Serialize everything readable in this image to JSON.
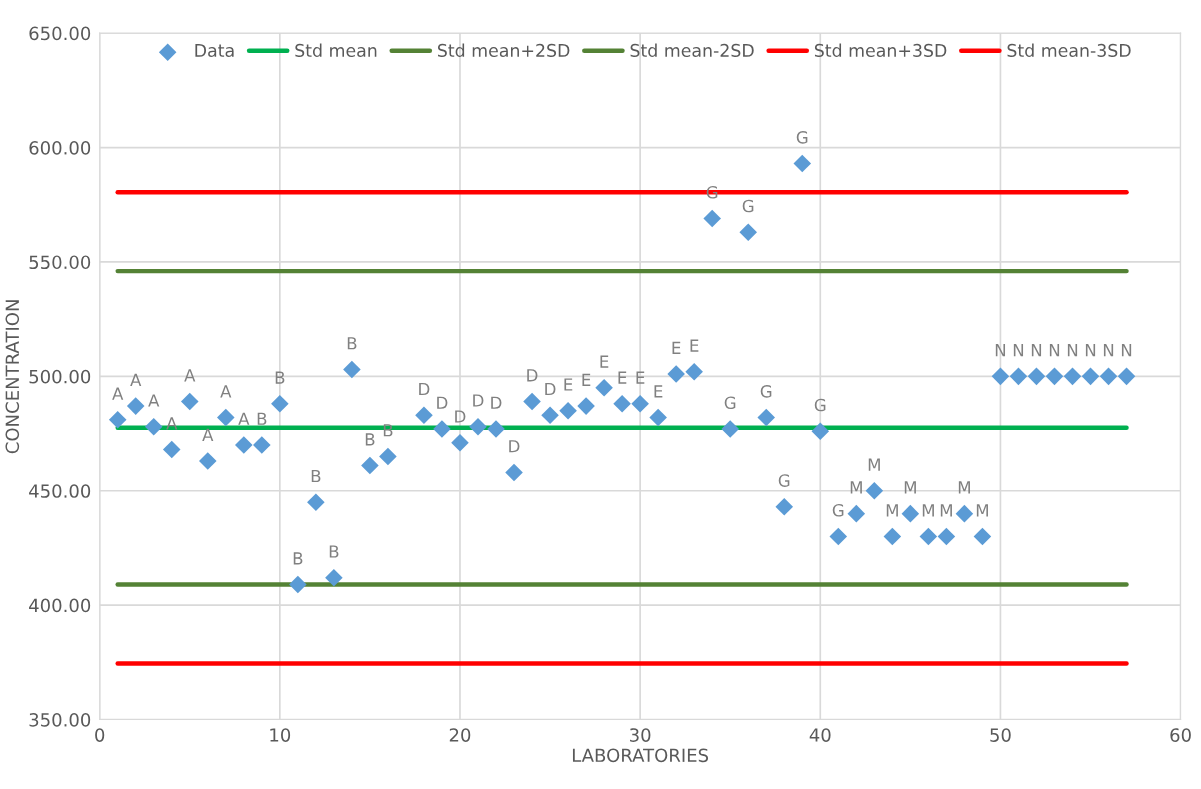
{
  "chart_data": {
    "type": "scatter",
    "xlabel": "LABORATORIES",
    "ylabel": "CONCENTRATION",
    "xlim": [
      0,
      60
    ],
    "xticks": [
      0,
      10,
      20,
      30,
      40,
      50,
      60
    ],
    "ylim": [
      350,
      650
    ],
    "yticks": [
      {
        "value": 350,
        "label": "350.00"
      },
      {
        "value": 400,
        "label": "400.00"
      },
      {
        "value": 450,
        "label": "450.00"
      },
      {
        "value": 500,
        "label": "500.00"
      },
      {
        "value": 550,
        "label": "550.00"
      },
      {
        "value": 600,
        "label": "600.00"
      },
      {
        "value": 650,
        "label": "650.00"
      }
    ],
    "grid": true,
    "legend": "top",
    "series": [
      {
        "name": "Data",
        "marker": "diamond",
        "color": "#5b9bd5",
        "x": [
          1,
          2,
          3,
          4,
          5,
          6,
          7,
          8,
          9,
          10,
          11,
          12,
          13,
          14,
          15,
          16,
          18,
          19,
          20,
          21,
          22,
          23,
          24,
          25,
          26,
          27,
          28,
          29,
          30,
          31,
          32,
          33,
          34,
          35,
          36,
          37,
          38,
          39,
          40,
          41,
          42,
          43,
          44,
          45,
          46,
          47,
          48,
          49,
          50,
          51,
          52,
          53,
          54,
          55,
          56,
          57
        ],
        "values": [
          481,
          487,
          478,
          468,
          489,
          463,
          482,
          470,
          470,
          488,
          409,
          445,
          412,
          503,
          461,
          465,
          483,
          477,
          471,
          478,
          477,
          458,
          489,
          483,
          485,
          487,
          495,
          488,
          488,
          482,
          501,
          502,
          569,
          477,
          563,
          482,
          443,
          593,
          476,
          430,
          440,
          450,
          430,
          440,
          430,
          430,
          440,
          430,
          500,
          500,
          500,
          500,
          500,
          500,
          500,
          500
        ]
      },
      {
        "name": "Std mean",
        "type": "line",
        "color": "#00b050",
        "x": [
          1,
          57
        ],
        "values": [
          477.5,
          477.5
        ]
      },
      {
        "name": "Std mean+2SD",
        "type": "line",
        "color": "#548235",
        "x": [
          1,
          57
        ],
        "values": [
          546,
          546
        ]
      },
      {
        "name": "Std mean-2SD",
        "type": "line",
        "color": "#548235",
        "x": [
          1,
          57
        ],
        "values": [
          409,
          409
        ]
      },
      {
        "name": "Std mean+3SD",
        "type": "line",
        "color": "#ff0000",
        "x": [
          1,
          57
        ],
        "values": [
          580.5,
          580.5
        ]
      },
      {
        "name": "Std mean-3SD",
        "type": "line",
        "color": "#ff0000",
        "x": [
          1,
          57
        ],
        "values": [
          374.5,
          374.5
        ]
      }
    ],
    "annotations": [
      {
        "text": "A",
        "x": 1,
        "y": 481
      },
      {
        "text": "A",
        "x": 2,
        "y": 487
      },
      {
        "text": "A",
        "x": 3,
        "y": 478
      },
      {
        "text": "A",
        "x": 4,
        "y": 468
      },
      {
        "text": "A",
        "x": 5,
        "y": 489
      },
      {
        "text": "A",
        "x": 6,
        "y": 463
      },
      {
        "text": "A",
        "x": 7,
        "y": 482
      },
      {
        "text": "A",
        "x": 8,
        "y": 470
      },
      {
        "text": "B",
        "x": 9,
        "y": 470
      },
      {
        "text": "B",
        "x": 10,
        "y": 488
      },
      {
        "text": "B",
        "x": 11,
        "y": 409
      },
      {
        "text": "B",
        "x": 12,
        "y": 445
      },
      {
        "text": "B",
        "x": 13,
        "y": 412
      },
      {
        "text": "B",
        "x": 14,
        "y": 503
      },
      {
        "text": "B",
        "x": 15,
        "y": 461
      },
      {
        "text": "B",
        "x": 16,
        "y": 465
      },
      {
        "text": "D",
        "x": 18,
        "y": 483
      },
      {
        "text": "D",
        "x": 19,
        "y": 477
      },
      {
        "text": "D",
        "x": 20,
        "y": 471
      },
      {
        "text": "D",
        "x": 21,
        "y": 478
      },
      {
        "text": "D",
        "x": 22,
        "y": 477
      },
      {
        "text": "D",
        "x": 23,
        "y": 458
      },
      {
        "text": "D",
        "x": 24,
        "y": 489
      },
      {
        "text": "D",
        "x": 25,
        "y": 483
      },
      {
        "text": "E",
        "x": 26,
        "y": 485
      },
      {
        "text": "E",
        "x": 27,
        "y": 487
      },
      {
        "text": "E",
        "x": 28,
        "y": 495
      },
      {
        "text": "E",
        "x": 29,
        "y": 488
      },
      {
        "text": "E",
        "x": 30,
        "y": 488
      },
      {
        "text": "E",
        "x": 31,
        "y": 482
      },
      {
        "text": "E",
        "x": 32,
        "y": 501
      },
      {
        "text": "E",
        "x": 33,
        "y": 502
      },
      {
        "text": "G",
        "x": 34,
        "y": 569
      },
      {
        "text": "G",
        "x": 35,
        "y": 477
      },
      {
        "text": "G",
        "x": 36,
        "y": 563
      },
      {
        "text": "G",
        "x": 37,
        "y": 482
      },
      {
        "text": "G",
        "x": 38,
        "y": 443
      },
      {
        "text": "G",
        "x": 39,
        "y": 593
      },
      {
        "text": "G",
        "x": 40,
        "y": 476
      },
      {
        "text": "G",
        "x": 41,
        "y": 430
      },
      {
        "text": "M",
        "x": 42,
        "y": 440
      },
      {
        "text": "M",
        "x": 43,
        "y": 450
      },
      {
        "text": "M",
        "x": 44,
        "y": 430
      },
      {
        "text": "M",
        "x": 45,
        "y": 440
      },
      {
        "text": "M",
        "x": 46,
        "y": 430
      },
      {
        "text": "M",
        "x": 47,
        "y": 430
      },
      {
        "text": "M",
        "x": 48,
        "y": 440
      },
      {
        "text": "M",
        "x": 49,
        "y": 430
      },
      {
        "text": "N",
        "x": 50,
        "y": 500
      },
      {
        "text": "N",
        "x": 51,
        "y": 500
      },
      {
        "text": "N",
        "x": 52,
        "y": 500
      },
      {
        "text": "N",
        "x": 53,
        "y": 500
      },
      {
        "text": "N",
        "x": 54,
        "y": 500
      },
      {
        "text": "N",
        "x": 55,
        "y": 500
      },
      {
        "text": "N",
        "x": 56,
        "y": 500
      },
      {
        "text": "N",
        "x": 57,
        "y": 500
      }
    ]
  }
}
